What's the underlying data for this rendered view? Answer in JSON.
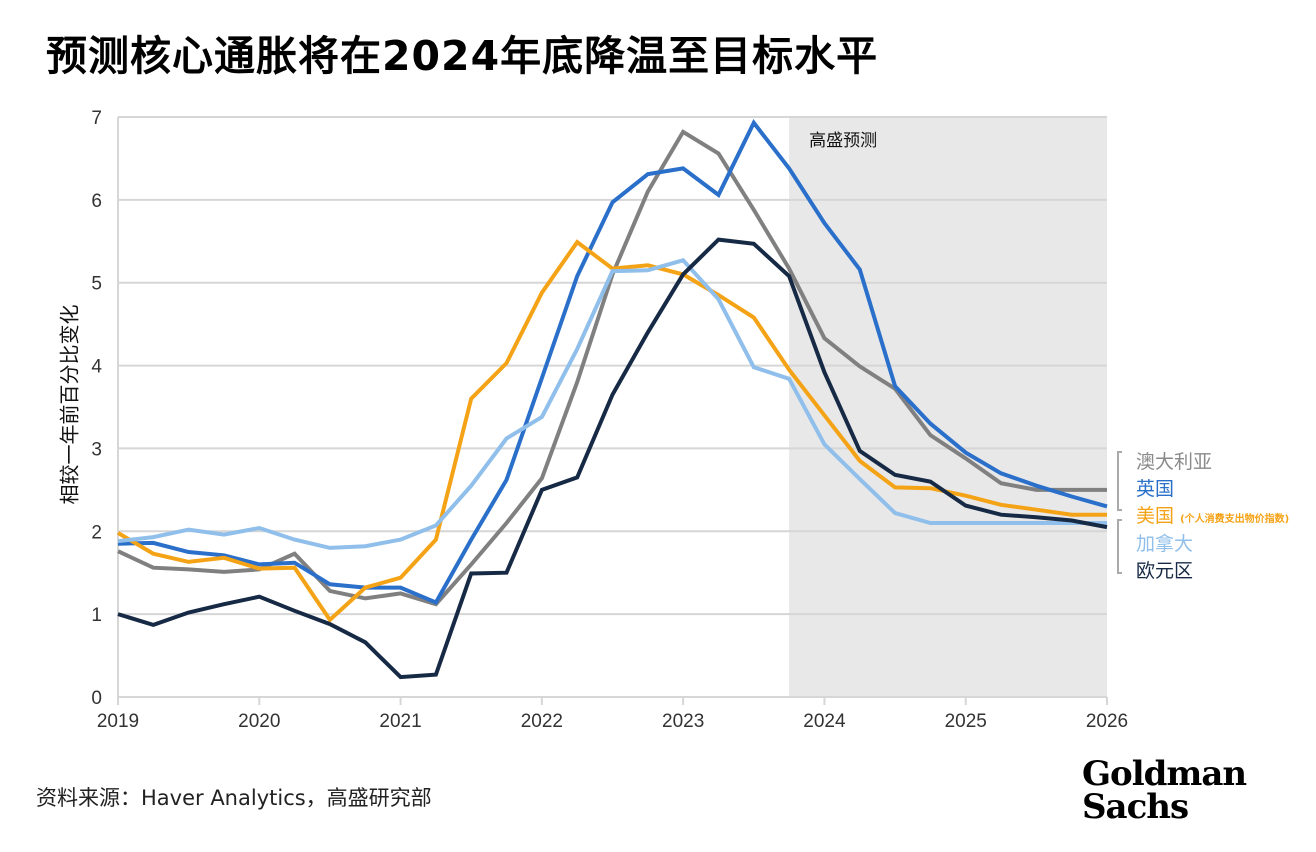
{
  "title": "预测核心通胀将在2024年底降温至目标水平",
  "source": "资料来源：Haver Analytics，高盛研究部",
  "logo": [
    "Goldman",
    "Sachs"
  ],
  "chart_data": {
    "type": "line",
    "title": "预测核心通胀将在2024年底降温至目标水平",
    "xlabel": "",
    "ylabel": "相较一年前百分比变化",
    "xlim": [
      2019,
      2026
    ],
    "ylim": [
      0,
      7
    ],
    "xticks": [
      "2019",
      "2020",
      "2021",
      "2022",
      "2023",
      "2024",
      "2025",
      "2026"
    ],
    "yticks": [
      "0",
      "1",
      "2",
      "3",
      "4",
      "5",
      "6",
      "7"
    ],
    "grid": true,
    "forecast_region": {
      "start": 2023.75,
      "end": 2026,
      "label": "高盛预测",
      "color": "#e8e8e8"
    },
    "x_start": 2019,
    "x_step": 0.25,
    "series": [
      {
        "name": "澳大利亚",
        "color": "#808080",
        "values": [
          1.76,
          1.56,
          1.54,
          1.51,
          1.54,
          1.73,
          1.28,
          1.19,
          1.25,
          1.12,
          1.6,
          2.1,
          2.64,
          3.8,
          5.1,
          6.1,
          6.82,
          6.56,
          5.88,
          5.17,
          4.33,
          3.99,
          3.72,
          3.16,
          2.88,
          2.58,
          2.5,
          2.5,
          2.5
        ]
      },
      {
        "name": "英国",
        "color": "#2a6fca",
        "values": [
          1.85,
          1.86,
          1.75,
          1.71,
          1.6,
          1.62,
          1.36,
          1.32,
          1.32,
          1.14,
          1.9,
          2.62,
          3.85,
          5.08,
          5.97,
          6.31,
          6.38,
          6.06,
          6.93,
          6.38,
          5.72,
          5.16,
          3.75,
          3.3,
          2.95,
          2.7,
          2.55,
          2.42,
          2.3
        ]
      },
      {
        "name": "美国",
        "note": "(个人消费支出物价指数)",
        "color": "#f5a316",
        "values": [
          1.98,
          1.73,
          1.63,
          1.68,
          1.55,
          1.56,
          0.93,
          1.32,
          1.44,
          1.9,
          3.6,
          4.03,
          4.88,
          5.49,
          5.17,
          5.21,
          5.1,
          4.85,
          4.58,
          3.95,
          3.4,
          2.85,
          2.53,
          2.52,
          2.43,
          2.32,
          2.26,
          2.2,
          2.2
        ]
      },
      {
        "name": "加拿大",
        "color": "#8fbfea",
        "values": [
          1.88,
          1.93,
          2.02,
          1.96,
          2.04,
          1.9,
          1.8,
          1.82,
          1.9,
          2.07,
          2.55,
          3.12,
          3.38,
          4.2,
          5.14,
          5.15,
          5.27,
          4.8,
          3.98,
          3.84,
          3.05,
          2.63,
          2.22,
          2.1,
          2.1,
          2.1,
          2.1,
          2.1,
          2.1
        ]
      },
      {
        "name": "欧元区",
        "color": "#172a45",
        "values": [
          1.0,
          0.87,
          1.02,
          1.12,
          1.21,
          1.04,
          0.88,
          0.66,
          0.24,
          0.27,
          1.49,
          1.5,
          2.5,
          2.65,
          3.65,
          4.4,
          5.1,
          5.52,
          5.47,
          5.08,
          3.92,
          2.97,
          2.68,
          2.6,
          2.31,
          2.2,
          2.17,
          2.13,
          2.05
        ]
      }
    ],
    "legend_placement": "right"
  }
}
